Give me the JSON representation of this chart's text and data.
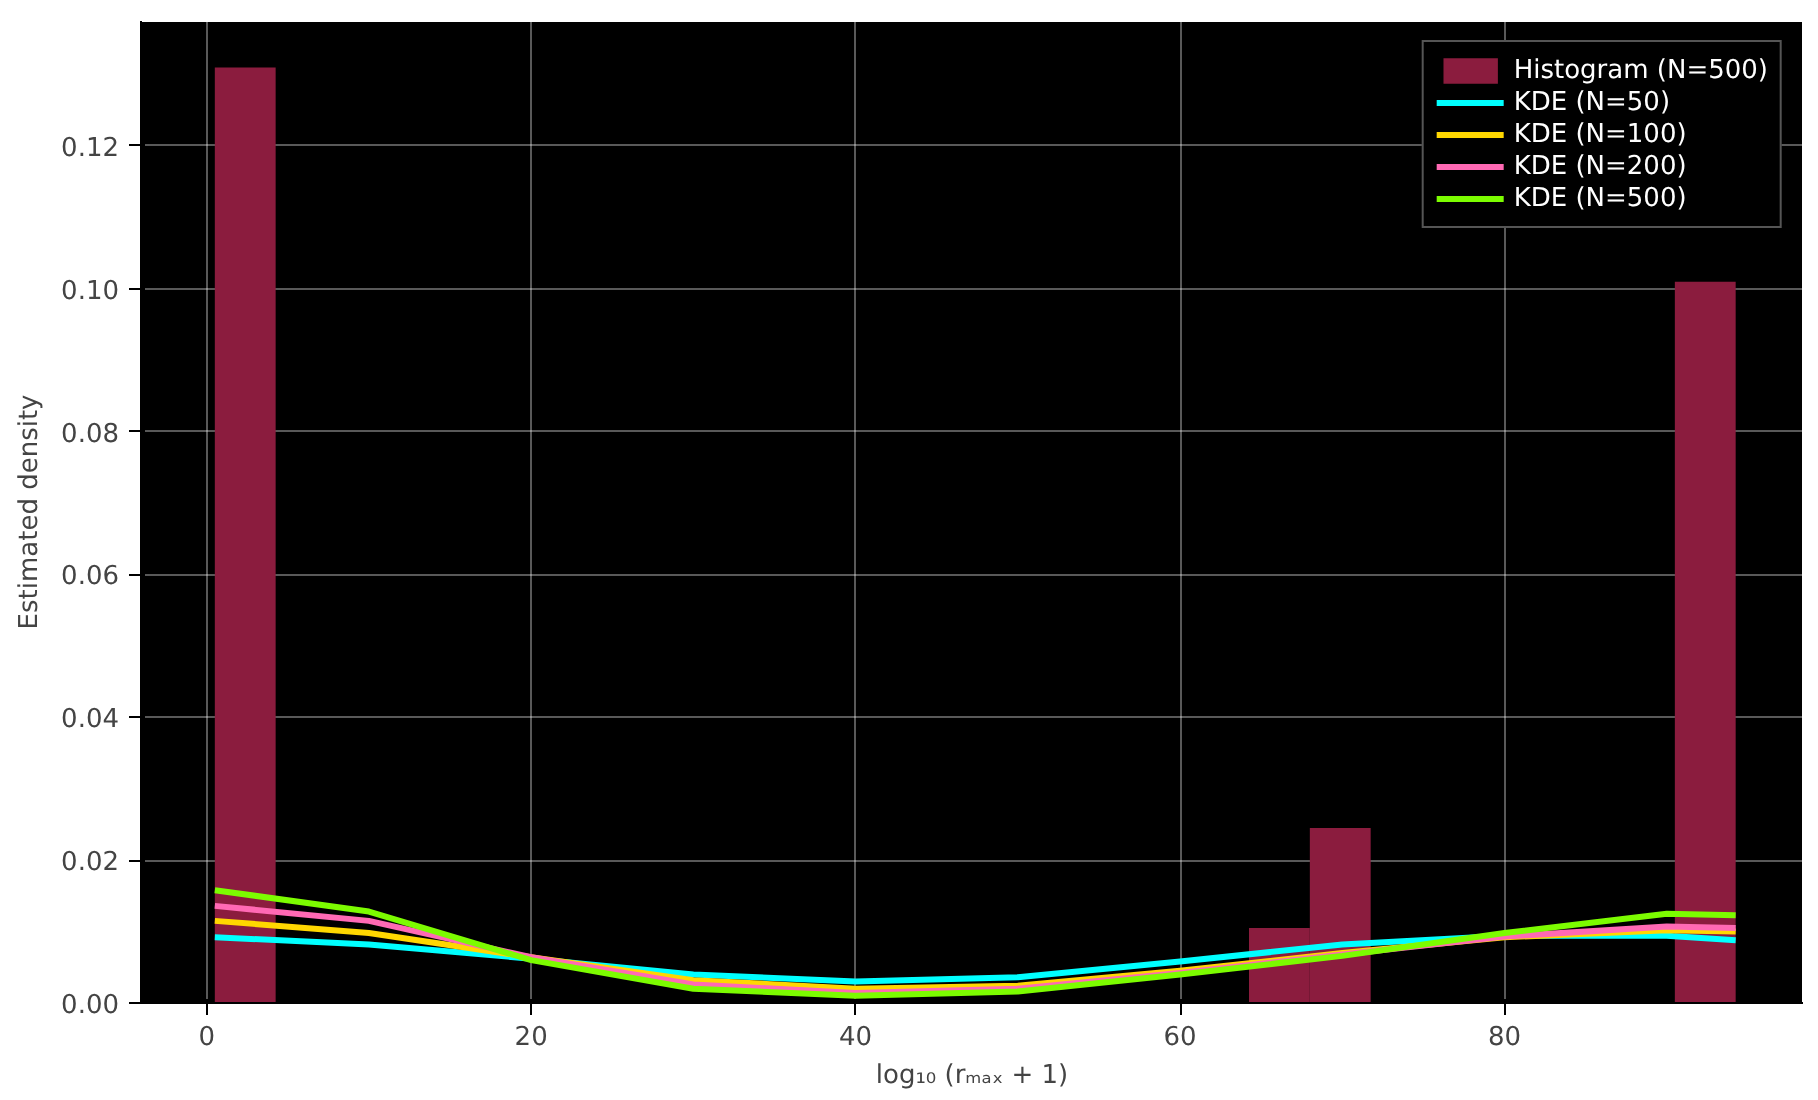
{
  "chart_data": {
    "type": "histogram",
    "xlabel": "log₁₀ (rₘₐₓ + 1)",
    "ylabel": "Estimated density",
    "series": [
      {
        "type": "histogram",
        "name": "Histogram (N=500)",
        "color": "#8b1c3e",
        "bins": [
          0.5,
          4.25,
          8.0,
          11.75,
          15.5,
          19.25,
          23.0,
          26.75,
          30.5,
          34.25,
          38.0,
          41.75,
          45.5,
          49.25,
          53.0,
          56.75,
          60.5,
          64.25,
          68.0,
          71.75,
          75.5,
          79.25,
          83.0,
          86.75,
          90.5,
          94.25
        ],
        "values": [
          0.131,
          0,
          0,
          0,
          0,
          0,
          0,
          0,
          0,
          0,
          0,
          0,
          0,
          0,
          0,
          0,
          0,
          0.0105,
          0.0245,
          0,
          0,
          0,
          0,
          0,
          0.101
        ]
      },
      {
        "type": "line",
        "name": "KDE (N=50)",
        "color": "#00ffff",
        "x": [
          0.5,
          10,
          20,
          30,
          40,
          50,
          60,
          70,
          80,
          90,
          94.25
        ],
        "values": [
          0.0092,
          0.0082,
          0.0062,
          0.004,
          0.003,
          0.0036,
          0.0058,
          0.0082,
          0.0094,
          0.0094,
          0.0088
        ]
      },
      {
        "type": "line",
        "name": "KDE (N=100)",
        "color": "#ffd700",
        "x": [
          0.5,
          10,
          20,
          30,
          40,
          50,
          60,
          70,
          80,
          90,
          94.25
        ],
        "values": [
          0.0115,
          0.0098,
          0.0064,
          0.0032,
          0.002,
          0.0024,
          0.0045,
          0.007,
          0.0092,
          0.0102,
          0.01
        ]
      },
      {
        "type": "line",
        "name": "KDE (N=200)",
        "color": "#ff69b4",
        "x": [
          0.5,
          10,
          20,
          30,
          40,
          50,
          60,
          70,
          80,
          90,
          94.25
        ],
        "values": [
          0.0136,
          0.0115,
          0.0064,
          0.0026,
          0.0014,
          0.002,
          0.0042,
          0.0068,
          0.0093,
          0.0107,
          0.0105
        ]
      },
      {
        "type": "line",
        "name": "KDE (N=500)",
        "color": "#7cfc00",
        "x": [
          0.5,
          10,
          20,
          30,
          40,
          50,
          60,
          70,
          80,
          90,
          94.25
        ],
        "values": [
          0.0158,
          0.0128,
          0.006,
          0.002,
          0.001,
          0.0016,
          0.004,
          0.0066,
          0.0098,
          0.0125,
          0.0123
        ]
      }
    ],
    "xlim": [
      -4.05,
      98.4
    ],
    "ylim": [
      0,
      0.1375
    ],
    "xticks": [
      0,
      20,
      40,
      60,
      80
    ],
    "yticks": [
      {
        "value": 0,
        "label": "0.00"
      },
      {
        "value": 0.02,
        "label": "0.02"
      },
      {
        "value": 0.04,
        "label": "0.04"
      },
      {
        "value": 0.06,
        "label": "0.06"
      },
      {
        "value": 0.08,
        "label": "0.08"
      },
      {
        "value": 0.1,
        "label": "0.10"
      },
      {
        "value": 0.12,
        "label": "0.12"
      }
    ],
    "grid": true,
    "legend": "top right"
  }
}
